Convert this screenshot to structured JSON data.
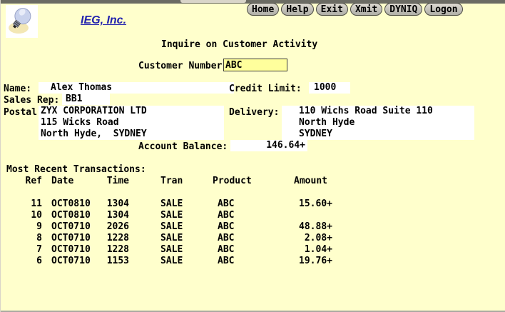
{
  "toolbar": {
    "buttons": [
      "Home",
      "Help",
      "Exit",
      "Xmit",
      "DYNIQ",
      "Logon"
    ]
  },
  "header": {
    "company": "IEG, Inc.",
    "logo": "lightbulb-icon"
  },
  "title": "Inquire on Customer Activity",
  "customer": {
    "number_label": "Customer Number",
    "number_value": "ABC",
    "name_label": "Name:",
    "name": "Alex Thomas",
    "credit_limit_label": "Credit Limit:",
    "credit_limit": "1000",
    "sales_rep_label": "Sales Rep:",
    "sales_rep": "BB1",
    "postal_label": "Postal:",
    "postal_lines": [
      "ZYX CORPORATION LTD",
      "115 Wicks Road",
      "North Hyde,  SYDNEY"
    ],
    "delivery_label": "Delivery:",
    "delivery_lines": [
      "110 Wichs Road Suite 110",
      "North Hyde",
      "SYDNEY"
    ],
    "account_balance_label": "Account Balance:",
    "account_balance": "146.64+"
  },
  "transactions": {
    "section_label": "Most Recent Transactions:",
    "headers": [
      "Ref",
      "Date",
      "Time",
      "Tran",
      "Product",
      "Amount"
    ],
    "rows": [
      {
        "ref": "11",
        "date": "OCT0810",
        "time": "1304",
        "tran": "SALE",
        "product": "ABC",
        "amount": "15.60+"
      },
      {
        "ref": "10",
        "date": "OCT0810",
        "time": "1304",
        "tran": "SALE",
        "product": "ABC",
        "amount": ""
      },
      {
        "ref": "9",
        "date": "OCT0710",
        "time": "2026",
        "tran": "SALE",
        "product": "ABC",
        "amount": "48.88+"
      },
      {
        "ref": "8",
        "date": "OCT0710",
        "time": "1228",
        "tran": "SALE",
        "product": "ABC",
        "amount": "2.08+"
      },
      {
        "ref": "7",
        "date": "OCT0710",
        "time": "1228",
        "tran": "SALE",
        "product": "ABC",
        "amount": "1.04+"
      },
      {
        "ref": "6",
        "date": "OCT0710",
        "time": "1153",
        "tran": "SALE",
        "product": "ABC",
        "amount": "19.76+"
      }
    ]
  },
  "colors": {
    "page_bg": "#FFFFCC",
    "input_bg": "#FFFF9C",
    "output_field_bg": "#FFFFFF",
    "button_face": "#C2C2BA",
    "top_strip": "#6B6B63",
    "link_blue": "#2222AE",
    "text": "#000000"
  }
}
